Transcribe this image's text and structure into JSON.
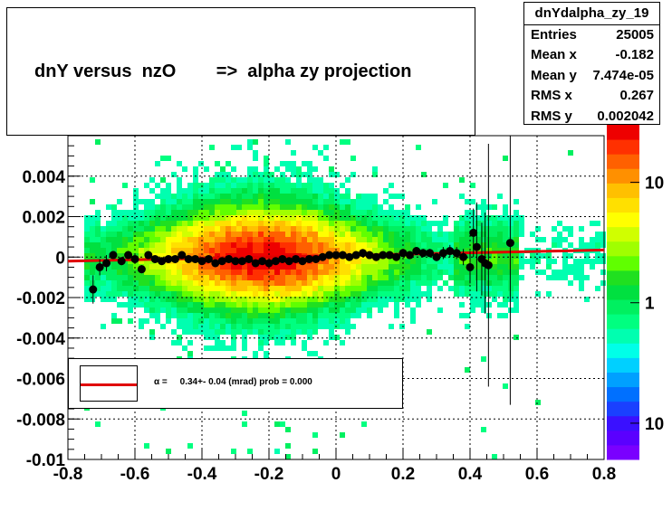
{
  "title": "dnY versus  nzO        =>  alpha zy projection",
  "stats": {
    "name": "dnYdalpha_zy_19",
    "rows": [
      {
        "label": "Entries",
        "value": "25005"
      },
      {
        "label": "Mean x",
        "value": "-0.182"
      },
      {
        "label": "Mean y",
        "value": "7.474e-05"
      },
      {
        "label": "RMS x",
        "value": "0.267"
      },
      {
        "label": "RMS y",
        "value": "0.002042"
      }
    ]
  },
  "fit_legend": {
    "text": "α =     0.34+- 0.04 (mrad) prob = 0.000",
    "line_color": "#e00000"
  },
  "colors": {
    "profile_marker": "#000000",
    "fit_line": "#e00000",
    "grid": "#000000"
  },
  "chart_data": {
    "type": "heatmap",
    "title": "dnY versus  nzO        =>  alpha zy projection",
    "xlim": [
      -0.8,
      0.8
    ],
    "ylim": [
      -0.01,
      0.006
    ],
    "x_ticks": [
      -0.8,
      -0.6,
      -0.4,
      -0.2,
      0,
      0.2,
      0.4,
      0.6,
      0.8
    ],
    "x_tick_labels": [
      "-0.8",
      "-0.6",
      "-0.4",
      "-0.2",
      "0",
      "0.2",
      "0.4",
      "0.6",
      "0.8"
    ],
    "y_ticks": [
      -0.01,
      -0.008,
      -0.006,
      -0.004,
      -0.002,
      0,
      0.002,
      0.004
    ],
    "y_tick_labels": [
      "-0.01",
      "-0.008",
      "-0.006",
      "-0.004",
      "-0.002",
      "0",
      "0.002",
      "0.004"
    ],
    "grid": true,
    "z_axis": {
      "scale": "log",
      "labels": [
        "10",
        "1",
        "10"
      ],
      "label_values": [
        10,
        1,
        0.1
      ]
    },
    "profile": {
      "x": [
        -0.725,
        -0.705,
        -0.685,
        -0.665,
        -0.64,
        -0.62,
        -0.6,
        -0.58,
        -0.56,
        -0.54,
        -0.52,
        -0.5,
        -0.48,
        -0.46,
        -0.44,
        -0.42,
        -0.4,
        -0.38,
        -0.36,
        -0.34,
        -0.32,
        -0.3,
        -0.28,
        -0.26,
        -0.24,
        -0.22,
        -0.2,
        -0.18,
        -0.16,
        -0.14,
        -0.12,
        -0.1,
        -0.08,
        -0.06,
        -0.04,
        -0.02,
        0.0,
        0.02,
        0.04,
        0.06,
        0.08,
        0.1,
        0.12,
        0.14,
        0.16,
        0.18,
        0.2,
        0.22,
        0.24,
        0.26,
        0.28,
        0.3,
        0.32,
        0.34,
        0.36,
        0.38,
        0.4,
        0.41,
        0.42,
        0.435,
        0.445,
        0.455,
        0.52
      ],
      "y": [
        -0.0016,
        -0.0005,
        -0.0003,
        0.0001,
        -0.0002,
        0.0001,
        -0.0001,
        -0.0006,
        0.0001,
        -0.0001,
        -0.0002,
        -0.0001,
        -0.0001,
        0.0001,
        -0.0001,
        -0.0001,
        -0.0002,
        -0.0001,
        -0.0003,
        -0.0002,
        -0.0001,
        -0.0002,
        -0.0002,
        -0.0001,
        -0.0003,
        -0.0002,
        -0.0003,
        -0.0002,
        -0.0001,
        -0.0002,
        -0.0001,
        -0.0002,
        -0.0001,
        -0.0001,
        0.0,
        0.0001,
        0.0001,
        0.0001,
        0.0,
        0.0001,
        0.0002,
        0.0001,
        0.0,
        0.0001,
        0.0001,
        0.0,
        0.0002,
        0.0001,
        0.0003,
        0.0002,
        0.0002,
        0.0,
        0.0002,
        0.0003,
        0.0002,
        0.0,
        -0.0005,
        0.0012,
        0.0005,
        -0.0001,
        -0.0003,
        -0.0004,
        0.0007
      ],
      "err": [
        0.0007,
        0.0004,
        0.0004,
        0.0002,
        0.0002,
        0.0002,
        0.0002,
        0.0002,
        0.0001,
        0.0001,
        0.0001,
        0.0001,
        0.0001,
        0.0001,
        0.0001,
        0.0001,
        0.0001,
        0.0001,
        0.0001,
        0.0001,
        0.0001,
        0.0001,
        0.0001,
        0.0001,
        0.0001,
        0.0001,
        0.0001,
        0.0001,
        0.0001,
        0.0001,
        0.0001,
        0.0001,
        0.0001,
        0.0001,
        0.0001,
        0.0001,
        0.0001,
        0.0001,
        0.0001,
        0.0001,
        0.0001,
        0.0001,
        0.0001,
        0.0001,
        0.0001,
        0.0001,
        0.0001,
        0.0002,
        0.0002,
        0.0002,
        0.0002,
        0.0002,
        0.0003,
        0.0003,
        0.0003,
        0.0004,
        0.0008,
        0.0012,
        0.0022,
        0.0018,
        0.0025,
        0.006,
        0.008
      ]
    },
    "fit": {
      "x1": -0.8,
      "y1": -0.0002,
      "x2": 0.8,
      "y2": 0.00035
    }
  }
}
